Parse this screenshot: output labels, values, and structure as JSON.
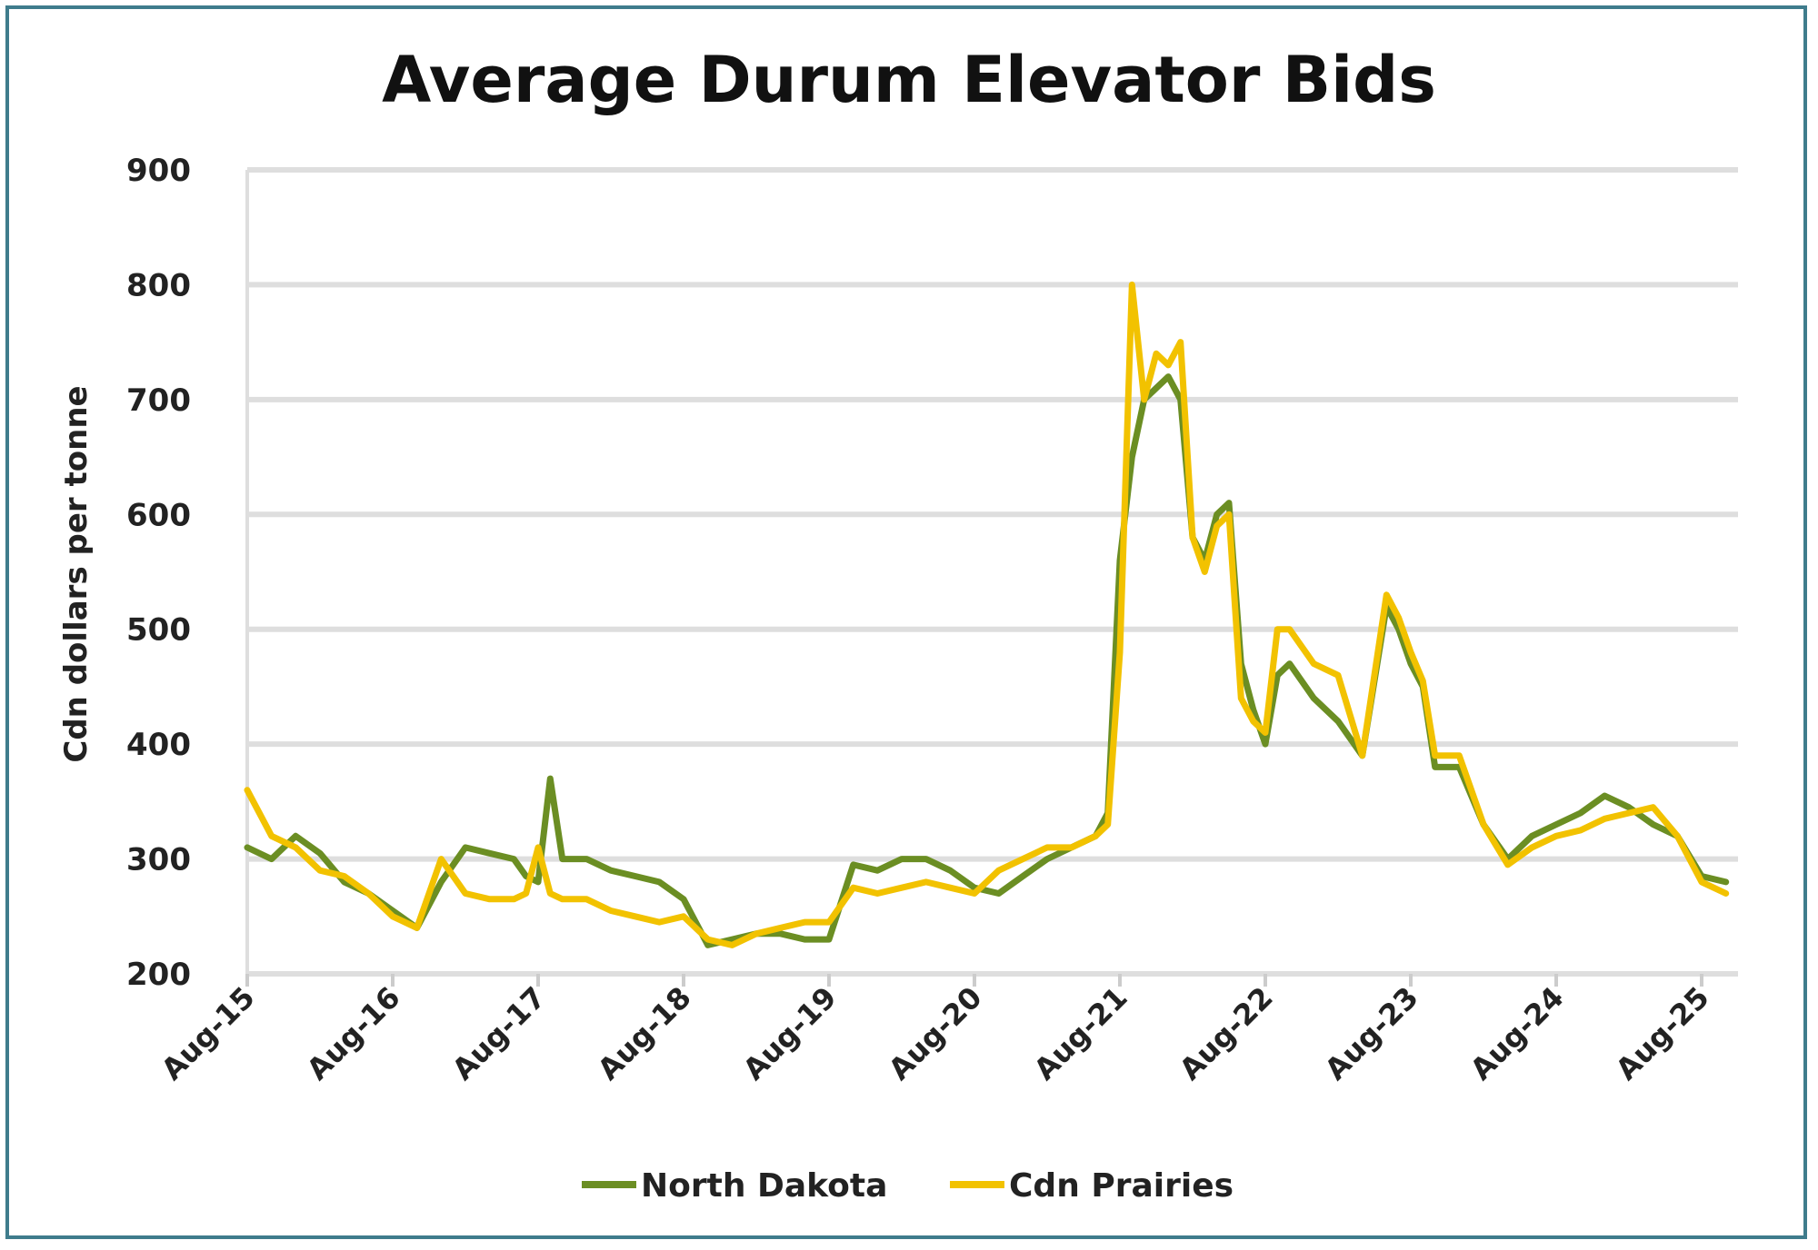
{
  "chart_data": {
    "type": "line",
    "title": "Average Durum Elevator Bids",
    "ylabel": "Cdn dollars per tonne",
    "xlabel": "",
    "ylim": [
      200,
      900
    ],
    "yticks": [
      "200",
      "300",
      "400",
      "500",
      "600",
      "700",
      "800",
      "900"
    ],
    "xticks": [
      "Aug-15",
      "Aug-16",
      "Aug-17",
      "Aug-18",
      "Aug-19",
      "Aug-20",
      "Aug-21",
      "Aug-22",
      "Aug-23",
      "Aug-24",
      "Aug-25"
    ],
    "grid": true,
    "legend_position": "bottom",
    "series": [
      {
        "name": "North Dakota",
        "color": "#6b8e23",
        "x": [
          "2015-08",
          "2015-10",
          "2015-12",
          "2016-02",
          "2016-04",
          "2016-06",
          "2016-08",
          "2016-10",
          "2016-12",
          "2017-02",
          "2017-04",
          "2017-06",
          "2017-07",
          "2017-08",
          "2017-09",
          "2017-10",
          "2017-12",
          "2018-02",
          "2018-04",
          "2018-06",
          "2018-08",
          "2018-10",
          "2018-12",
          "2019-02",
          "2019-04",
          "2019-06",
          "2019-08",
          "2019-10",
          "2019-12",
          "2020-02",
          "2020-04",
          "2020-06",
          "2020-08",
          "2020-10",
          "2020-12",
          "2021-02",
          "2021-04",
          "2021-06",
          "2021-07",
          "2021-08",
          "2021-09",
          "2021-10",
          "2021-11",
          "2021-12",
          "2022-01",
          "2022-02",
          "2022-03",
          "2022-04",
          "2022-05",
          "2022-06",
          "2022-07",
          "2022-08",
          "2022-09",
          "2022-10",
          "2022-12",
          "2023-02",
          "2023-04",
          "2023-06",
          "2023-07",
          "2023-08",
          "2023-09",
          "2023-10",
          "2023-12",
          "2024-02",
          "2024-04",
          "2024-06",
          "2024-08",
          "2024-10",
          "2024-12",
          "2025-02",
          "2025-04",
          "2025-06",
          "2025-08",
          "2025-10"
        ],
        "values": [
          310,
          300,
          320,
          305,
          280,
          270,
          255,
          240,
          280,
          310,
          305,
          300,
          285,
          280,
          370,
          300,
          300,
          290,
          285,
          280,
          265,
          225,
          230,
          235,
          235,
          230,
          230,
          295,
          290,
          300,
          300,
          290,
          275,
          270,
          285,
          300,
          310,
          320,
          340,
          560,
          650,
          700,
          710,
          720,
          700,
          580,
          560,
          600,
          610,
          470,
          430,
          400,
          460,
          470,
          440,
          420,
          390,
          520,
          500,
          470,
          450,
          380,
          380,
          330,
          300,
          320,
          330,
          340,
          355,
          345,
          330,
          320,
          285,
          280
        ]
      },
      {
        "name": "Cdn Prairies",
        "color": "#f2c200",
        "x": [
          "2015-08",
          "2015-10",
          "2015-12",
          "2016-02",
          "2016-04",
          "2016-06",
          "2016-08",
          "2016-10",
          "2016-12",
          "2017-02",
          "2017-04",
          "2017-06",
          "2017-07",
          "2017-08",
          "2017-09",
          "2017-10",
          "2017-12",
          "2018-02",
          "2018-04",
          "2018-06",
          "2018-08",
          "2018-10",
          "2018-12",
          "2019-02",
          "2019-04",
          "2019-06",
          "2019-08",
          "2019-10",
          "2019-12",
          "2020-02",
          "2020-04",
          "2020-06",
          "2020-08",
          "2020-10",
          "2020-12",
          "2021-02",
          "2021-04",
          "2021-06",
          "2021-07",
          "2021-08",
          "2021-09",
          "2021-10",
          "2021-11",
          "2021-12",
          "2022-01",
          "2022-02",
          "2022-03",
          "2022-04",
          "2022-05",
          "2022-06",
          "2022-07",
          "2022-08",
          "2022-09",
          "2022-10",
          "2022-12",
          "2023-02",
          "2023-04",
          "2023-06",
          "2023-07",
          "2023-08",
          "2023-09",
          "2023-10",
          "2023-12",
          "2024-02",
          "2024-04",
          "2024-06",
          "2024-08",
          "2024-10",
          "2024-12",
          "2025-02",
          "2025-04",
          "2025-06",
          "2025-08",
          "2025-10"
        ],
        "values": [
          360,
          320,
          310,
          290,
          285,
          270,
          250,
          240,
          300,
          270,
          265,
          265,
          270,
          310,
          270,
          265,
          265,
          255,
          250,
          245,
          250,
          230,
          225,
          235,
          240,
          245,
          245,
          275,
          270,
          275,
          280,
          275,
          270,
          290,
          300,
          310,
          310,
          320,
          330,
          480,
          800,
          700,
          740,
          730,
          750,
          580,
          550,
          590,
          600,
          440,
          420,
          410,
          500,
          500,
          470,
          460,
          390,
          530,
          510,
          480,
          455,
          390,
          390,
          330,
          295,
          310,
          320,
          325,
          335,
          340,
          345,
          320,
          280,
          270
        ]
      }
    ]
  }
}
